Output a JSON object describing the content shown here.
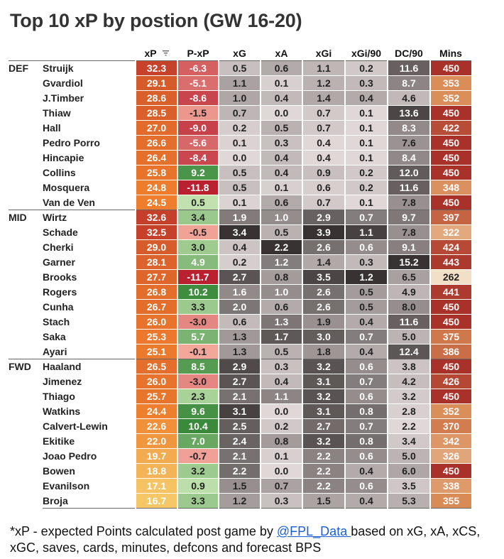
{
  "title": "Top 10 xP by postion (GW 16-20)",
  "chart_data": {
    "type": "table",
    "title": "Top 10 xP by postion (GW 16-20)",
    "columns": [
      "xP",
      "P-xP",
      "xG",
      "xA",
      "xGi",
      "xGi/90",
      "DC/90",
      "Mins"
    ],
    "sorted_by": "xP",
    "groups": [
      {
        "name": "DEF",
        "rows": [
          {
            "player": "Struijk",
            "xP": "32.3",
            "P-xP": "-6.3",
            "xG": "0.5",
            "xA": "0.6",
            "xGi": "1.1",
            "xGi/90": "0.2",
            "DC/90": "11.6",
            "Mins": "450"
          },
          {
            "player": "Gvardiol",
            "xP": "29.1",
            "P-xP": "-5.1",
            "xG": "1.1",
            "xA": "0.1",
            "xGi": "1.2",
            "xGi/90": "0.3",
            "DC/90": "8.7",
            "Mins": "353"
          },
          {
            "player": "J.Timber",
            "xP": "28.6",
            "P-xP": "-8.6",
            "xG": "1.0",
            "xA": "0.4",
            "xGi": "1.4",
            "xGi/90": "0.4",
            "DC/90": "4.6",
            "Mins": "352"
          },
          {
            "player": "Thiaw",
            "xP": "28.5",
            "P-xP": "-1.5",
            "xG": "0.7",
            "xA": "0.0",
            "xGi": "0.7",
            "xGi/90": "0.1",
            "DC/90": "13.6",
            "Mins": "450"
          },
          {
            "player": "Hall",
            "xP": "27.0",
            "P-xP": "-9.0",
            "xG": "0.2",
            "xA": "0.5",
            "xGi": "0.7",
            "xGi/90": "0.1",
            "DC/90": "8.3",
            "Mins": "422"
          },
          {
            "player": "Pedro Porro",
            "xP": "26.6",
            "P-xP": "-5.6",
            "xG": "0.1",
            "xA": "0.3",
            "xGi": "0.4",
            "xGi/90": "0.1",
            "DC/90": "7.6",
            "Mins": "450"
          },
          {
            "player": "Hincapie",
            "xP": "26.4",
            "P-xP": "-8.4",
            "xG": "0.0",
            "xA": "0.4",
            "xGi": "0.4",
            "xGi/90": "0.1",
            "DC/90": "8.4",
            "Mins": "450"
          },
          {
            "player": "Collins",
            "xP": "25.8",
            "P-xP": "9.2",
            "xG": "0.5",
            "xA": "0.4",
            "xGi": "0.9",
            "xGi/90": "0.2",
            "DC/90": "12.0",
            "Mins": "450"
          },
          {
            "player": "Mosquera",
            "xP": "24.8",
            "P-xP": "-11.8",
            "xG": "0.5",
            "xA": "0.1",
            "xGi": "0.6",
            "xGi/90": "0.2",
            "DC/90": "11.6",
            "Mins": "348"
          },
          {
            "player": "Van de Ven",
            "xP": "24.5",
            "P-xP": "0.5",
            "xG": "0.1",
            "xA": "0.6",
            "xGi": "0.7",
            "xGi/90": "0.1",
            "DC/90": "7.8",
            "Mins": "450"
          }
        ]
      },
      {
        "name": "MID",
        "rows": [
          {
            "player": "Wirtz",
            "xP": "32.6",
            "P-xP": "3.4",
            "xG": "1.9",
            "xA": "1.0",
            "xGi": "2.9",
            "xGi/90": "0.7",
            "DC/90": "9.7",
            "Mins": "397"
          },
          {
            "player": "Schade",
            "xP": "32.5",
            "P-xP": "-0.5",
            "xG": "3.4",
            "xA": "0.5",
            "xGi": "3.9",
            "xGi/90": "1.1",
            "DC/90": "7.8",
            "Mins": "322"
          },
          {
            "player": "Cherki",
            "xP": "29.0",
            "P-xP": "3.0",
            "xG": "0.4",
            "xA": "2.2",
            "xGi": "2.6",
            "xGi/90": "0.6",
            "DC/90": "9.1",
            "Mins": "424"
          },
          {
            "player": "Garner",
            "xP": "28.1",
            "P-xP": "4.9",
            "xG": "0.2",
            "xA": "1.2",
            "xGi": "1.4",
            "xGi/90": "0.3",
            "DC/90": "15.2",
            "Mins": "443"
          },
          {
            "player": "Brooks",
            "xP": "27.7",
            "P-xP": "-11.7",
            "xG": "2.7",
            "xA": "0.8",
            "xGi": "3.5",
            "xGi/90": "1.2",
            "DC/90": "6.5",
            "Mins": "262"
          },
          {
            "player": "Rogers",
            "xP": "26.8",
            "P-xP": "10.2",
            "xG": "1.6",
            "xA": "1.0",
            "xGi": "2.6",
            "xGi/90": "0.5",
            "DC/90": "4.9",
            "Mins": "441"
          },
          {
            "player": "Cunha",
            "xP": "26.7",
            "P-xP": "3.3",
            "xG": "2.0",
            "xA": "0.6",
            "xGi": "2.6",
            "xGi/90": "0.5",
            "DC/90": "8.0",
            "Mins": "450"
          },
          {
            "player": "Stach",
            "xP": "26.0",
            "P-xP": "-3.0",
            "xG": "0.6",
            "xA": "1.3",
            "xGi": "1.9",
            "xGi/90": "0.4",
            "DC/90": "11.6",
            "Mins": "450"
          },
          {
            "player": "Saka",
            "xP": "25.3",
            "P-xP": "5.7",
            "xG": "1.3",
            "xA": "1.7",
            "xGi": "3.0",
            "xGi/90": "0.7",
            "DC/90": "5.0",
            "Mins": "375"
          },
          {
            "player": "Ayari",
            "xP": "25.1",
            "P-xP": "-0.1",
            "xG": "1.3",
            "xA": "0.5",
            "xGi": "1.8",
            "xGi/90": "0.4",
            "DC/90": "12.4",
            "Mins": "386"
          }
        ]
      },
      {
        "name": "FWD",
        "rows": [
          {
            "player": "Haaland",
            "xP": "26.5",
            "P-xP": "8.5",
            "xG": "2.9",
            "xA": "0.3",
            "xGi": "3.2",
            "xGi/90": "0.6",
            "DC/90": "3.8",
            "Mins": "450"
          },
          {
            "player": "Jimenez",
            "xP": "26.0",
            "P-xP": "-3.0",
            "xG": "2.7",
            "xA": "0.4",
            "xGi": "3.1",
            "xGi/90": "0.7",
            "DC/90": "4.2",
            "Mins": "426"
          },
          {
            "player": "Thiago",
            "xP": "25.7",
            "P-xP": "2.3",
            "xG": "2.1",
            "xA": "1.1",
            "xGi": "3.2",
            "xGi/90": "0.6",
            "DC/90": "3.2",
            "Mins": "450"
          },
          {
            "player": "Watkins",
            "xP": "24.4",
            "P-xP": "9.6",
            "xG": "3.1",
            "xA": "0.0",
            "xGi": "3.1",
            "xGi/90": "0.8",
            "DC/90": "2.8",
            "Mins": "352"
          },
          {
            "player": "Calvert-Lewin",
            "xP": "22.6",
            "P-xP": "10.4",
            "xG": "2.5",
            "xA": "0.2",
            "xGi": "2.7",
            "xGi/90": "0.7",
            "DC/90": "2.2",
            "Mins": "370"
          },
          {
            "player": "Ekitike",
            "xP": "22.0",
            "P-xP": "7.0",
            "xG": "2.4",
            "xA": "0.8",
            "xGi": "3.2",
            "xGi/90": "0.8",
            "DC/90": "3.4",
            "Mins": "342"
          },
          {
            "player": "Joao Pedro",
            "xP": "19.7",
            "P-xP": "-0.7",
            "xG": "2.1",
            "xA": "0.1",
            "xGi": "2.2",
            "xGi/90": "0.6",
            "DC/90": "5.0",
            "Mins": "326"
          },
          {
            "player": "Bowen",
            "xP": "18.8",
            "P-xP": "3.2",
            "xG": "2.2",
            "xA": "0.0",
            "xGi": "2.2",
            "xGi/90": "0.4",
            "DC/90": "6.0",
            "Mins": "450"
          },
          {
            "player": "Evanilson",
            "xP": "17.1",
            "P-xP": "0.9",
            "xG": "1.5",
            "xA": "0.7",
            "xGi": "2.2",
            "xGi/90": "0.6",
            "DC/90": "3.5",
            "Mins": "338"
          },
          {
            "player": "Broja",
            "xP": "16.7",
            "P-xP": "3.3",
            "xG": "1.2",
            "xA": "0.3",
            "xGi": "1.5",
            "xGi/90": "0.4",
            "DC/90": "5.3",
            "Mins": "355"
          }
        ]
      }
    ]
  },
  "footnote": {
    "before": "*xP - expected Points calculated post game by ",
    "link": "@FPL_Data ",
    "after": "based on xG, xA, xCS, xGC, saves, cards, minutes, defcons and forecast BPS"
  },
  "colors": {
    "xp_high": "#c4402a",
    "xp_mid": "#ee7d2c",
    "xp_low": "#f5c766",
    "pxp_neg": "#b81e2e",
    "pxp_neg_light": "#f3a89c",
    "pxp_pos_light": "#c8e6b4",
    "pxp_pos": "#3b8a3c",
    "stat_low": "#e0d8d6",
    "stat_high": "#383232",
    "mins_high": "#a8322a",
    "mins_mid": "#d98a55",
    "mins_low": "#f2dfc8",
    "link": "#1a5fd6"
  }
}
